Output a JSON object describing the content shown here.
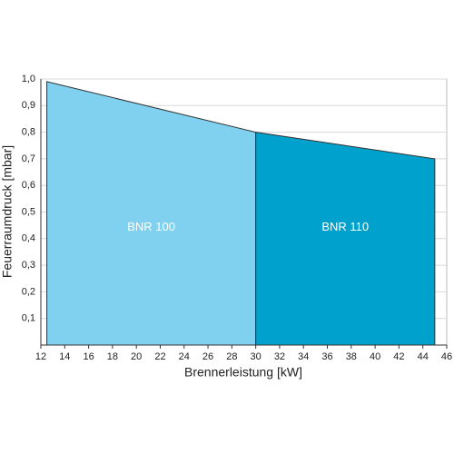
{
  "chart_data": {
    "type": "area",
    "x_label": "Brennerleistung [kW]",
    "y_label": "Feuerraumdruck [mbar]",
    "series": [
      {
        "name": "BNR 100",
        "color": "#80d0ef",
        "x": [
          12.5,
          30
        ],
        "values": [
          0.99,
          0.8
        ]
      },
      {
        "name": "BNR 110",
        "color": "#00a1cc",
        "x": [
          30,
          45
        ],
        "values": [
          0.8,
          0.7
        ]
      }
    ],
    "xlim": [
      12,
      46
    ],
    "xticks": [
      12,
      14,
      16,
      18,
      20,
      22,
      24,
      26,
      28,
      30,
      32,
      34,
      36,
      38,
      40,
      42,
      44,
      46
    ],
    "ylim": [
      0,
      1
    ],
    "yticks": [
      {
        "value": 0.1,
        "label": "0,1"
      },
      {
        "value": 0.2,
        "label": "0,2"
      },
      {
        "value": 0.3,
        "label": "0,3"
      },
      {
        "value": 0.4,
        "label": "0,4"
      },
      {
        "value": 0.5,
        "label": "0,5"
      },
      {
        "value": 0.6,
        "label": "0,6"
      },
      {
        "value": 0.7,
        "label": "0,7"
      },
      {
        "value": 0.8,
        "label": "0,8"
      },
      {
        "value": 0.9,
        "label": "0,9"
      },
      {
        "value": 1,
        "label": "1,0"
      }
    ],
    "grid": true
  }
}
